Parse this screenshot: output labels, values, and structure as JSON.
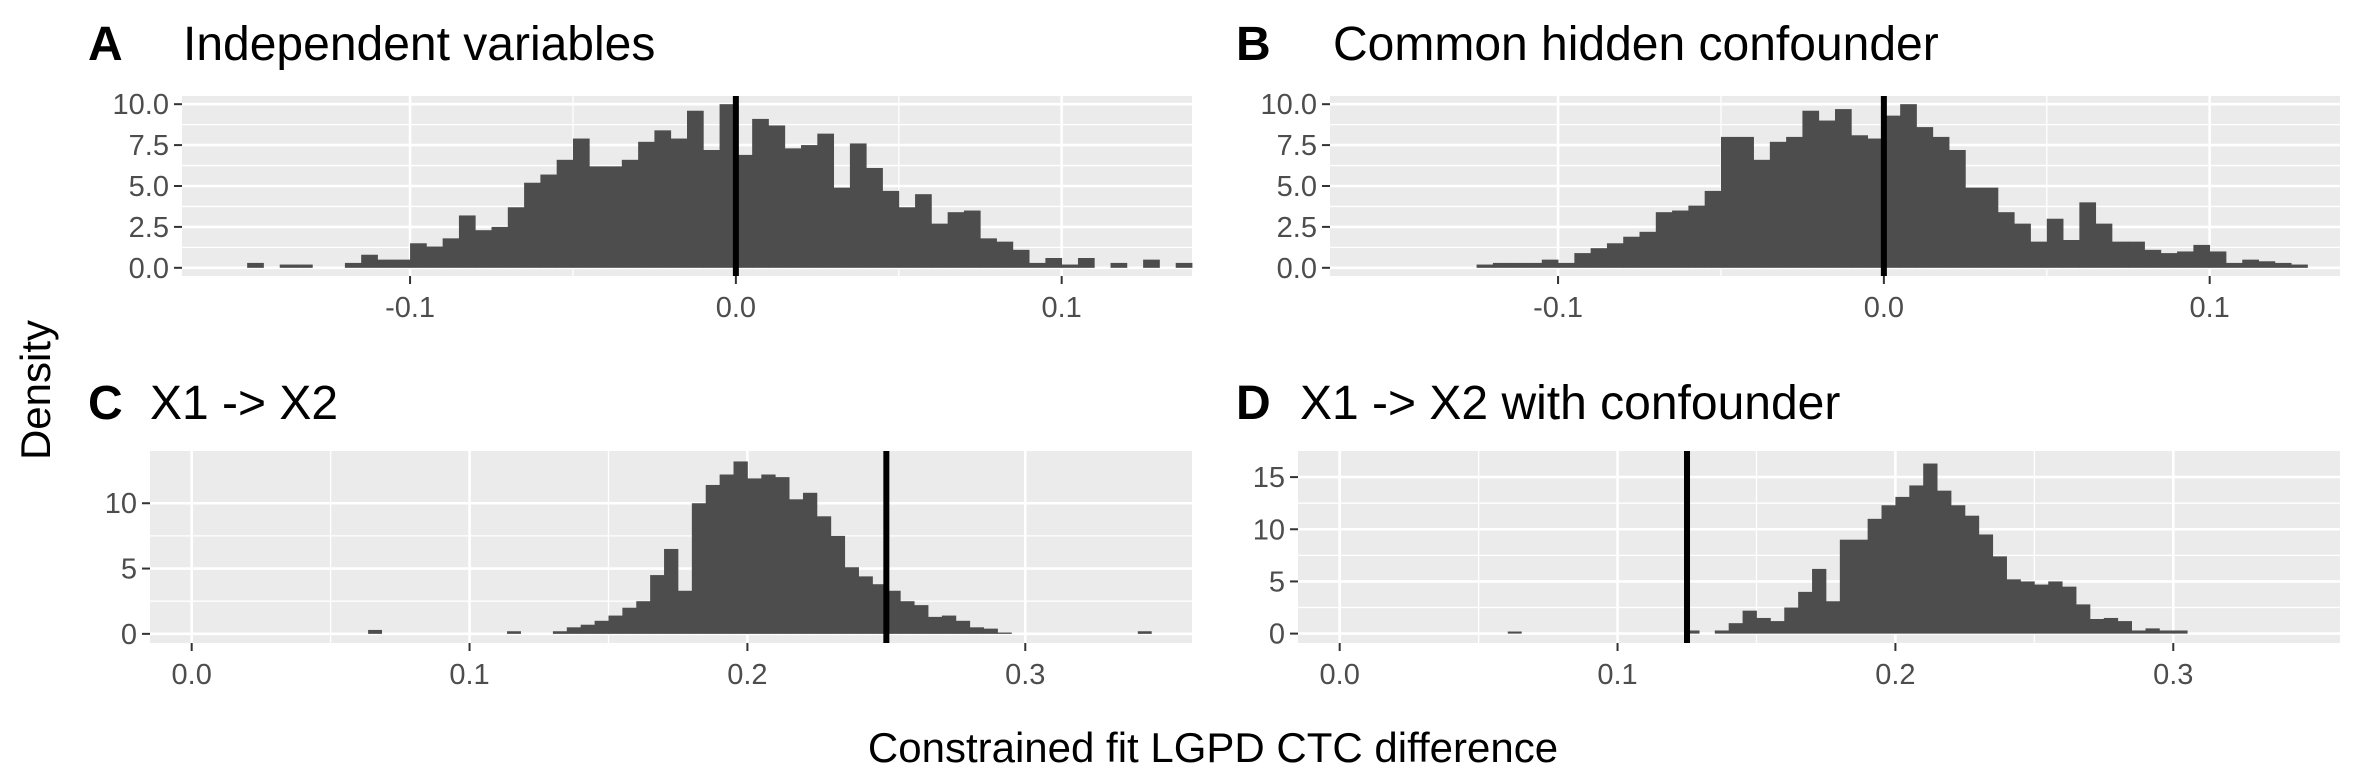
{
  "xlabel": "Constrained fit LGPD CTC difference",
  "ylabel": "Density",
  "colors": {
    "bars": "#4d4d4d",
    "panel_bg": "#ebebeb",
    "grid": "#ffffff",
    "vline": "#000000"
  },
  "chart_data": [
    {
      "type": "bar",
      "tag": "A",
      "title": "Independent variables",
      "xlim": [
        -0.17,
        0.14
      ],
      "ylim": [
        -0.5,
        10.5
      ],
      "x_ticks": [
        -0.1,
        0.0,
        0.1
      ],
      "x_tick_labels": [
        "-0.1",
        "0.0",
        "0.1"
      ],
      "y_ticks": [
        0,
        2.5,
        5,
        7.5,
        10
      ],
      "y_tick_labels": [
        "0.0",
        "2.5",
        "5.0",
        "7.5",
        "10.0"
      ],
      "vline": 0.0,
      "bins": {
        "start": -0.15,
        "width": 0.005,
        "values": [
          0.3,
          0,
          0.2,
          0.2,
          0,
          0,
          0.3,
          0.8,
          0.5,
          0.5,
          1.5,
          1.3,
          1.8,
          3.2,
          2.3,
          2.5,
          3.7,
          5.2,
          5.7,
          6.6,
          7.9,
          6.2,
          6.2,
          6.6,
          7.7,
          8.4,
          7.9,
          9.6,
          7.2,
          10.0,
          6.9,
          9.1,
          8.7,
          7.3,
          7.5,
          8.2,
          4.9,
          7.6,
          6.1,
          4.7,
          3.7,
          4.5,
          2.7,
          3.4,
          3.5,
          1.8,
          1.6,
          1.1,
          0.3,
          0.6,
          0.2,
          0.6,
          0,
          0.3,
          0,
          0.5,
          0,
          0.3
        ]
      }
    },
    {
      "type": "bar",
      "tag": "B",
      "title": "Common hidden confounder",
      "xlim": [
        -0.17,
        0.14
      ],
      "ylim": [
        -0.5,
        10.5
      ],
      "x_ticks": [
        -0.1,
        0.0,
        0.1
      ],
      "x_tick_labels": [
        "-0.1",
        "0.0",
        "0.1"
      ],
      "y_ticks": [
        0,
        2.5,
        5,
        7.5,
        10
      ],
      "y_tick_labels": [
        "0.0",
        "2.5",
        "5.0",
        "7.5",
        "10.0"
      ],
      "vline": 0.0,
      "bins": {
        "start": -0.155,
        "width": 0.005,
        "values": [
          0,
          0,
          0,
          0,
          0,
          0,
          0.2,
          0.3,
          0.3,
          0.3,
          0.5,
          0.3,
          0.9,
          1.2,
          1.5,
          1.9,
          2.2,
          3.4,
          3.5,
          3.8,
          4.7,
          8.0,
          8.0,
          6.6,
          7.7,
          8.0,
          9.6,
          9.0,
          9.7,
          8.1,
          7.9,
          9.3,
          10.0,
          8.6,
          8.0,
          7.2,
          4.9,
          4.9,
          3.4,
          2.7,
          1.6,
          3.0,
          1.7,
          4.0,
          2.7,
          1.6,
          1.6,
          1.1,
          0.9,
          1.0,
          1.4,
          1.0,
          0.3,
          0.5,
          0.4,
          0.3,
          0.2,
          0,
          0
        ]
      }
    },
    {
      "type": "bar",
      "tag": "C",
      "title": "X1 -> X2",
      "xlim": [
        -0.015,
        0.36
      ],
      "ylim": [
        -0.7,
        14
      ],
      "x_ticks": [
        0.0,
        0.1,
        0.2,
        0.3
      ],
      "x_tick_labels": [
        "0.0",
        "0.1",
        "0.2",
        "0.3"
      ],
      "y_ticks": [
        0,
        5,
        10
      ],
      "y_tick_labels": [
        "0",
        "5",
        "10"
      ],
      "vline": 0.25,
      "bins": {
        "start": 0.13,
        "width": 0.005,
        "values": [
          0.2,
          0.5,
          0.7,
          1.0,
          1.4,
          2.0,
          2.5,
          4.5,
          6.5,
          3.3,
          10.0,
          11.4,
          12.2,
          13.2,
          11.9,
          12.2,
          12.0,
          10.3,
          10.8,
          9.0,
          7.5,
          5.1,
          4.4,
          3.8,
          3.3,
          2.5,
          2.2,
          1.3,
          1.4,
          1.0,
          0.5,
          0.4,
          0.1
        ],
        "outliers": [
          {
            "x": 0.066,
            "y": 0.3
          },
          {
            "x": 0.116,
            "y": 0.2
          },
          {
            "x": 0.343,
            "y": 0.2
          }
        ]
      }
    },
    {
      "type": "bar",
      "tag": "D",
      "title": "X1 -> X2 with confounder",
      "xlim": [
        -0.015,
        0.36
      ],
      "ylim": [
        -0.9,
        17.5
      ],
      "x_ticks": [
        0.0,
        0.1,
        0.2,
        0.3
      ],
      "x_tick_labels": [
        "0.0",
        "0.1",
        "0.2",
        "0.3"
      ],
      "y_ticks": [
        0,
        5,
        10,
        15
      ],
      "y_tick_labels": [
        "0",
        "5",
        "10",
        "15"
      ],
      "vline": 0.125,
      "bins": {
        "start": 0.11,
        "width": 0.005,
        "values": [
          0,
          0,
          0,
          0,
          0,
          0.3,
          1.0,
          2.2,
          1.5,
          1.2,
          2.5,
          4.0,
          6.2,
          3.1,
          9.0,
          9.0,
          11.0,
          12.3,
          13.1,
          14.2,
          16.3,
          13.7,
          12.3,
          11.3,
          9.5,
          7.4,
          5.2,
          5.0,
          4.7,
          5.0,
          4.5,
          2.8,
          1.4,
          1.5,
          1.2,
          0.3,
          0.5,
          0.3,
          0.3
        ],
        "outliers": [
          {
            "x": 0.063,
            "y": 0.2
          },
          {
            "x": 0.127,
            "y": 0.3
          }
        ]
      }
    }
  ]
}
